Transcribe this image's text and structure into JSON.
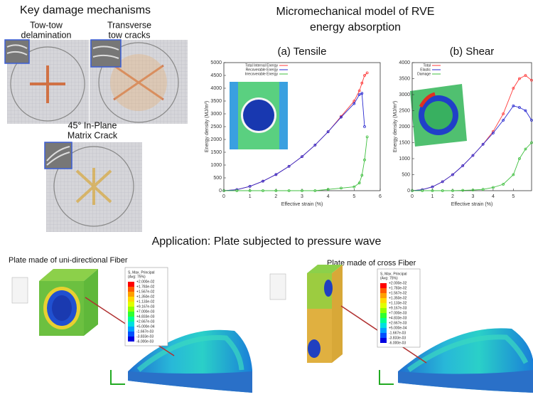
{
  "damage": {
    "title": "Key damage mechanisms",
    "labels": [
      [
        "Tow-tow",
        "delamination"
      ],
      [
        "Transverse",
        "tow cracks"
      ],
      [
        "45° In-Plane",
        "Matrix Crack"
      ]
    ]
  },
  "model": {
    "title": [
      "Micromechanical model of RVE",
      "energy absorption"
    ]
  },
  "chart_data": [
    {
      "type": "line",
      "title": "(a) Tensile",
      "x_label": "Effective strain (%)",
      "y_label": "Energy density (MJ/m³)",
      "x": [
        0,
        0.5,
        1,
        1.5,
        2,
        2.5,
        3,
        3.5,
        4,
        4.5,
        5,
        5.2,
        5.3,
        5.4,
        5.5
      ],
      "series": [
        {
          "name": "Total Internal Energy",
          "color": "#ff3b3b",
          "values": [
            0,
            40,
            170,
            370,
            630,
            950,
            1330,
            1780,
            2300,
            2900,
            3500,
            3900,
            4200,
            4500,
            4600
          ]
        },
        {
          "name": "Recoverable Energy",
          "color": "#2a2ad0",
          "values": [
            0,
            40,
            170,
            370,
            630,
            950,
            1330,
            1780,
            2300,
            2870,
            3400,
            3750,
            3800,
            2500,
            null
          ]
        },
        {
          "name": "Irrecoverable Energy",
          "color": "#3fbf3f",
          "values": [
            0,
            0,
            0,
            0,
            0,
            0,
            0,
            0,
            50,
            100,
            150,
            300,
            600,
            1200,
            2100
          ]
        }
      ],
      "xlim": [
        0,
        6
      ],
      "xticks": [
        0,
        1,
        2,
        3,
        4,
        5,
        6
      ],
      "ylim": [
        0,
        5000
      ],
      "yticks": [
        0,
        500,
        1000,
        1500,
        2000,
        2500,
        3000,
        3500,
        4000,
        4500,
        5000
      ]
    },
    {
      "type": "line",
      "title": "(b) Shear",
      "x_label": "Effective strain (%)",
      "y_label": "Energy density (MJ/m³)",
      "x": [
        0,
        0.5,
        1,
        1.5,
        2,
        2.5,
        3,
        3.5,
        4,
        4.5,
        5,
        5.3,
        5.6,
        5.9
      ],
      "series": [
        {
          "name": "Total",
          "color": "#ff3b3b",
          "values": [
            0,
            30,
            120,
            280,
            500,
            780,
            1100,
            1450,
            1850,
            2400,
            3200,
            3500,
            3600,
            3450
          ]
        },
        {
          "name": "Elastic",
          "color": "#2a2ad0",
          "values": [
            0,
            30,
            120,
            280,
            500,
            780,
            1100,
            1450,
            1800,
            2200,
            2650,
            2600,
            2500,
            2200
          ]
        },
        {
          "name": "Damage",
          "color": "#3fbf3f",
          "values": [
            0,
            0,
            0,
            0,
            0,
            10,
            20,
            40,
            100,
            200,
            500,
            1000,
            1300,
            1500
          ]
        }
      ],
      "xlim": [
        0,
        5.9
      ],
      "xticks": [
        0,
        1,
        2,
        3,
        4,
        5
      ],
      "ylim": [
        0,
        4000
      ],
      "yticks": [
        0,
        500,
        1000,
        1500,
        2000,
        2500,
        3000,
        3500,
        4000
      ]
    }
  ],
  "application": {
    "title": "Application:  Plate subjected to pressure wave",
    "cases": [
      "Plate made of uni-directional Fiber",
      "Plate made of cross Fiber"
    ],
    "legend": {
      "title": "S, Max. Principal",
      "subtitle": "(Avg: 75%)",
      "values": [
        "+2.000e-02",
        "+1.783e-02",
        "+1.567e-02",
        "+1.350e-02",
        "+1.133e-02",
        "+9.167e-03",
        "+7.000e-03",
        "+4.833e-03",
        "+2.667e-03",
        "+5.000e-04",
        "-1.667e-03",
        "-3.833e-03",
        "-6.000e-03"
      ]
    }
  }
}
